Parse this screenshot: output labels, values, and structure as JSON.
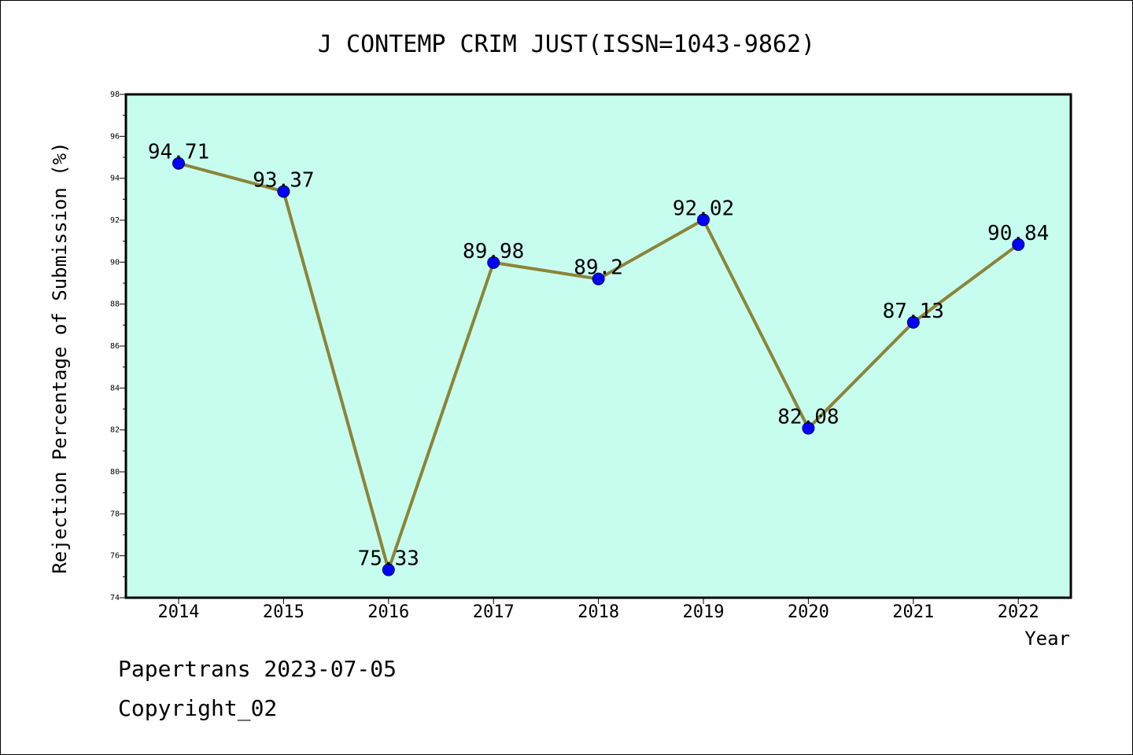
{
  "chart_data": {
    "type": "line",
    "title": "J CONTEMP CRIM JUST(ISSN=1043-9862)",
    "xlabel": "Year",
    "ylabel": "Rejection Percentage of Submission (%)",
    "categories": [
      "2014",
      "2015",
      "2016",
      "2017",
      "2018",
      "2019",
      "2020",
      "2021",
      "2022"
    ],
    "series": [
      {
        "values": [
          94.71,
          93.37,
          75.33,
          89.98,
          89.2,
          92.02,
          82.08,
          87.13,
          90.84
        ],
        "labels": [
          "94.71",
          "93.37",
          "75.33",
          "89.98",
          "89.2",
          "92.02",
          "82.08",
          "87.13",
          "90.84"
        ]
      }
    ],
    "ylim": [
      74,
      98
    ],
    "yticks": [
      "74",
      "76",
      "78",
      "80",
      "82",
      "84",
      "86",
      "88",
      "90",
      "92",
      "94",
      "96",
      "98"
    ],
    "grid": false,
    "colors": {
      "plot_background": "#c7fdef",
      "line": "#8b8437",
      "marker": "#0000ff"
    }
  },
  "footer": {
    "line1": "Papertrans 2023-07-05",
    "line2": "Copyright_02"
  }
}
